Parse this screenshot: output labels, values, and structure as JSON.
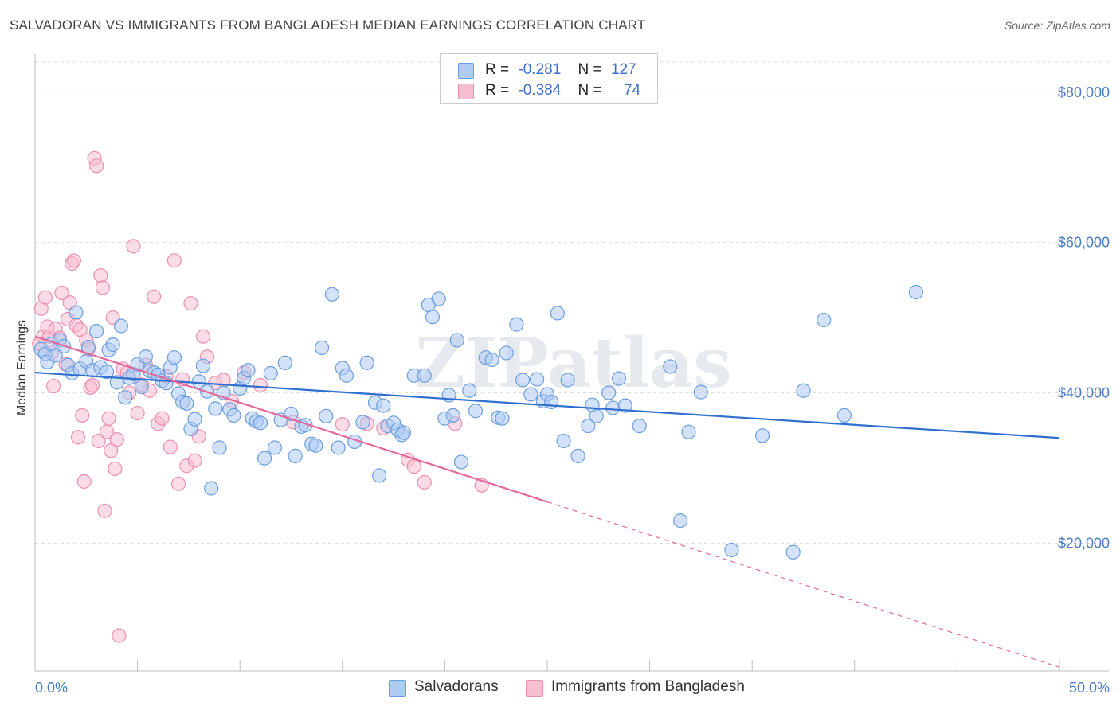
{
  "title": "SALVADORAN VS IMMIGRANTS FROM BANGLADESH MEDIAN EARNINGS CORRELATION CHART",
  "source": "Source: ZipAtlas.com",
  "watermark": "ZIPatlas",
  "legend": {
    "rows": [
      {
        "r_label": "R =",
        "r_value": "-0.281",
        "n_label": "N =",
        "n_value": "127"
      },
      {
        "r_label": "R =",
        "r_value": "-0.384",
        "n_label": "N =",
        "n_value": "74"
      }
    ]
  },
  "colors": {
    "blue_fill": "#aecbf2",
    "blue_stroke": "#6a9ee0",
    "blue_line": "#2f6fd0",
    "pink_fill": "#f7bdd0",
    "pink_stroke": "#ec8fae",
    "pink_line": "#e5679a",
    "grid": "#dddddd",
    "tick_text": "#4a7cc8"
  },
  "chart_data": {
    "type": "scatter",
    "xlabel": "",
    "ylabel": "Median Earnings",
    "xlim": [
      0,
      50
    ],
    "ylim": [
      3000,
      84000
    ],
    "x_tick_labels": [
      {
        "value": 0,
        "label": "0.0%"
      },
      {
        "value": 50,
        "label": "50.0%"
      }
    ],
    "x_minor_ticks": [
      0,
      5,
      10,
      15,
      20,
      25,
      30,
      35,
      40,
      45,
      50
    ],
    "y_ticks": [
      {
        "value": 20000,
        "label": "$20,000"
      },
      {
        "value": 40000,
        "label": "$40,000"
      },
      {
        "value": 60000,
        "label": "$60,000"
      },
      {
        "value": 80000,
        "label": "$80,000"
      }
    ],
    "grid": true,
    "legend_position": "top-center",
    "series": [
      {
        "name": "Salvadorans",
        "r": -0.281,
        "n": 127,
        "trend": {
          "x0": 0,
          "y0": 42700,
          "x1": 50,
          "y1": 34000,
          "solid_until": 50
        },
        "points": [
          [
            0.3,
            45800
          ],
          [
            0.5,
            45200
          ],
          [
            0.6,
            44100
          ],
          [
            0.8,
            46500
          ],
          [
            1.0,
            45000
          ],
          [
            1.2,
            47000
          ],
          [
            1.4,
            46200
          ],
          [
            1.6,
            43700
          ],
          [
            1.8,
            42600
          ],
          [
            2.0,
            50700
          ],
          [
            2.2,
            43200
          ],
          [
            2.5,
            44200
          ],
          [
            2.6,
            46100
          ],
          [
            2.8,
            43000
          ],
          [
            3.0,
            48200
          ],
          [
            3.2,
            43400
          ],
          [
            3.5,
            42800
          ],
          [
            3.6,
            45700
          ],
          [
            3.8,
            46400
          ],
          [
            4.0,
            41400
          ],
          [
            4.2,
            48900
          ],
          [
            4.4,
            39400
          ],
          [
            4.6,
            42000
          ],
          [
            4.8,
            42500
          ],
          [
            5.0,
            43800
          ],
          [
            5.2,
            40800
          ],
          [
            5.4,
            44800
          ],
          [
            5.6,
            42900
          ],
          [
            5.8,
            42700
          ],
          [
            6.0,
            42400
          ],
          [
            6.2,
            41600
          ],
          [
            6.4,
            41300
          ],
          [
            6.6,
            43400
          ],
          [
            6.8,
            44700
          ],
          [
            7.0,
            39900
          ],
          [
            7.2,
            38800
          ],
          [
            7.4,
            38600
          ],
          [
            7.6,
            35200
          ],
          [
            7.8,
            36500
          ],
          [
            8.0,
            41500
          ],
          [
            8.2,
            43600
          ],
          [
            8.4,
            40200
          ],
          [
            8.6,
            27300
          ],
          [
            8.8,
            37900
          ],
          [
            9.0,
            32700
          ],
          [
            9.2,
            40000
          ],
          [
            9.5,
            37800
          ],
          [
            9.7,
            37000
          ],
          [
            10.0,
            40600
          ],
          [
            10.2,
            42000
          ],
          [
            10.4,
            43000
          ],
          [
            10.6,
            36600
          ],
          [
            10.8,
            36200
          ],
          [
            11.0,
            36000
          ],
          [
            11.2,
            31300
          ],
          [
            11.5,
            42600
          ],
          [
            11.7,
            32700
          ],
          [
            12.0,
            36400
          ],
          [
            12.2,
            44000
          ],
          [
            12.5,
            37200
          ],
          [
            12.7,
            31600
          ],
          [
            13.0,
            35500
          ],
          [
            13.2,
            35700
          ],
          [
            13.5,
            33200
          ],
          [
            13.7,
            33000
          ],
          [
            14.0,
            46000
          ],
          [
            14.2,
            36900
          ],
          [
            14.5,
            53100
          ],
          [
            14.8,
            32700
          ],
          [
            15.0,
            43300
          ],
          [
            15.2,
            42300
          ],
          [
            15.6,
            33500
          ],
          [
            16.0,
            36100
          ],
          [
            16.2,
            44000
          ],
          [
            16.6,
            38700
          ],
          [
            16.8,
            29000
          ],
          [
            17.0,
            38300
          ],
          [
            17.2,
            35600
          ],
          [
            17.5,
            36000
          ],
          [
            17.7,
            35100
          ],
          [
            17.9,
            34400
          ],
          [
            18.0,
            34700
          ],
          [
            18.5,
            42300
          ],
          [
            19.0,
            42300
          ],
          [
            19.2,
            51700
          ],
          [
            19.4,
            50100
          ],
          [
            19.7,
            52500
          ],
          [
            20.0,
            36600
          ],
          [
            20.2,
            39700
          ],
          [
            20.4,
            37000
          ],
          [
            20.6,
            47000
          ],
          [
            20.8,
            30800
          ],
          [
            21.2,
            40300
          ],
          [
            21.5,
            37600
          ],
          [
            22.0,
            44700
          ],
          [
            22.3,
            44400
          ],
          [
            22.6,
            36700
          ],
          [
            22.8,
            36600
          ],
          [
            23.0,
            45300
          ],
          [
            23.5,
            49100
          ],
          [
            23.8,
            41700
          ],
          [
            24.2,
            39800
          ],
          [
            24.5,
            41800
          ],
          [
            24.8,
            38900
          ],
          [
            25.0,
            39800
          ],
          [
            25.2,
            38800
          ],
          [
            25.5,
            50600
          ],
          [
            25.8,
            33600
          ],
          [
            26.0,
            41700
          ],
          [
            26.5,
            31600
          ],
          [
            27.0,
            35600
          ],
          [
            27.2,
            38400
          ],
          [
            27.4,
            36900
          ],
          [
            28.0,
            40000
          ],
          [
            28.2,
            38000
          ],
          [
            28.5,
            41900
          ],
          [
            28.8,
            38300
          ],
          [
            29.5,
            35600
          ],
          [
            31.0,
            43500
          ],
          [
            31.5,
            23000
          ],
          [
            31.9,
            34800
          ],
          [
            32.5,
            40100
          ],
          [
            34.0,
            19100
          ],
          [
            35.5,
            34300
          ],
          [
            37.0,
            18800
          ],
          [
            37.5,
            40300
          ],
          [
            38.5,
            49700
          ],
          [
            39.5,
            37000
          ],
          [
            43.0,
            53400
          ]
        ]
      },
      {
        "name": "Immigrants from Bangladesh",
        "r": -0.384,
        "n": 74,
        "trend": {
          "x0": 0,
          "y0": 47500,
          "x1": 50,
          "y1": 3500,
          "solid_until": 25
        },
        "points": [
          [
            0.2,
            46500
          ],
          [
            0.3,
            51200
          ],
          [
            0.4,
            47500
          ],
          [
            0.5,
            52700
          ],
          [
            0.6,
            48800
          ],
          [
            0.7,
            47500
          ],
          [
            0.8,
            45300
          ],
          [
            0.9,
            40900
          ],
          [
            1.0,
            48500
          ],
          [
            1.2,
            47300
          ],
          [
            1.3,
            53300
          ],
          [
            1.5,
            43800
          ],
          [
            1.6,
            49800
          ],
          [
            1.7,
            52000
          ],
          [
            1.8,
            57200
          ],
          [
            1.9,
            57600
          ],
          [
            2.0,
            49000
          ],
          [
            2.1,
            34100
          ],
          [
            2.2,
            48400
          ],
          [
            2.3,
            37000
          ],
          [
            2.4,
            28200
          ],
          [
            2.5,
            47000
          ],
          [
            2.6,
            45800
          ],
          [
            2.7,
            40700
          ],
          [
            2.8,
            41000
          ],
          [
            2.9,
            71200
          ],
          [
            3.0,
            70200
          ],
          [
            3.1,
            33600
          ],
          [
            3.2,
            55600
          ],
          [
            3.3,
            54000
          ],
          [
            3.4,
            24300
          ],
          [
            3.5,
            34800
          ],
          [
            3.6,
            36600
          ],
          [
            3.7,
            32300
          ],
          [
            3.8,
            50000
          ],
          [
            3.9,
            29900
          ],
          [
            4.0,
            33800
          ],
          [
            4.1,
            7700
          ],
          [
            4.3,
            43200
          ],
          [
            4.5,
            42700
          ],
          [
            4.6,
            40000
          ],
          [
            4.8,
            59500
          ],
          [
            5.0,
            37300
          ],
          [
            5.2,
            41100
          ],
          [
            5.4,
            43700
          ],
          [
            5.6,
            40300
          ],
          [
            5.8,
            52800
          ],
          [
            6.0,
            35900
          ],
          [
            6.2,
            36600
          ],
          [
            6.4,
            42200
          ],
          [
            6.6,
            32800
          ],
          [
            6.8,
            57600
          ],
          [
            7.0,
            27900
          ],
          [
            7.2,
            41800
          ],
          [
            7.4,
            30300
          ],
          [
            7.6,
            51900
          ],
          [
            7.8,
            31000
          ],
          [
            8.0,
            34200
          ],
          [
            8.2,
            47500
          ],
          [
            8.4,
            44800
          ],
          [
            8.8,
            41300
          ],
          [
            9.2,
            41700
          ],
          [
            9.6,
            38900
          ],
          [
            10.2,
            42700
          ],
          [
            11.0,
            41000
          ],
          [
            12.6,
            36100
          ],
          [
            15.0,
            35800
          ],
          [
            16.2,
            35900
          ],
          [
            17.0,
            35300
          ],
          [
            18.2,
            31100
          ],
          [
            18.5,
            30200
          ],
          [
            19.0,
            28100
          ],
          [
            20.5,
            35900
          ],
          [
            21.8,
            27700
          ]
        ]
      }
    ]
  },
  "bottom_legend": [
    "Salvadorans",
    "Immigrants from Bangladesh"
  ]
}
